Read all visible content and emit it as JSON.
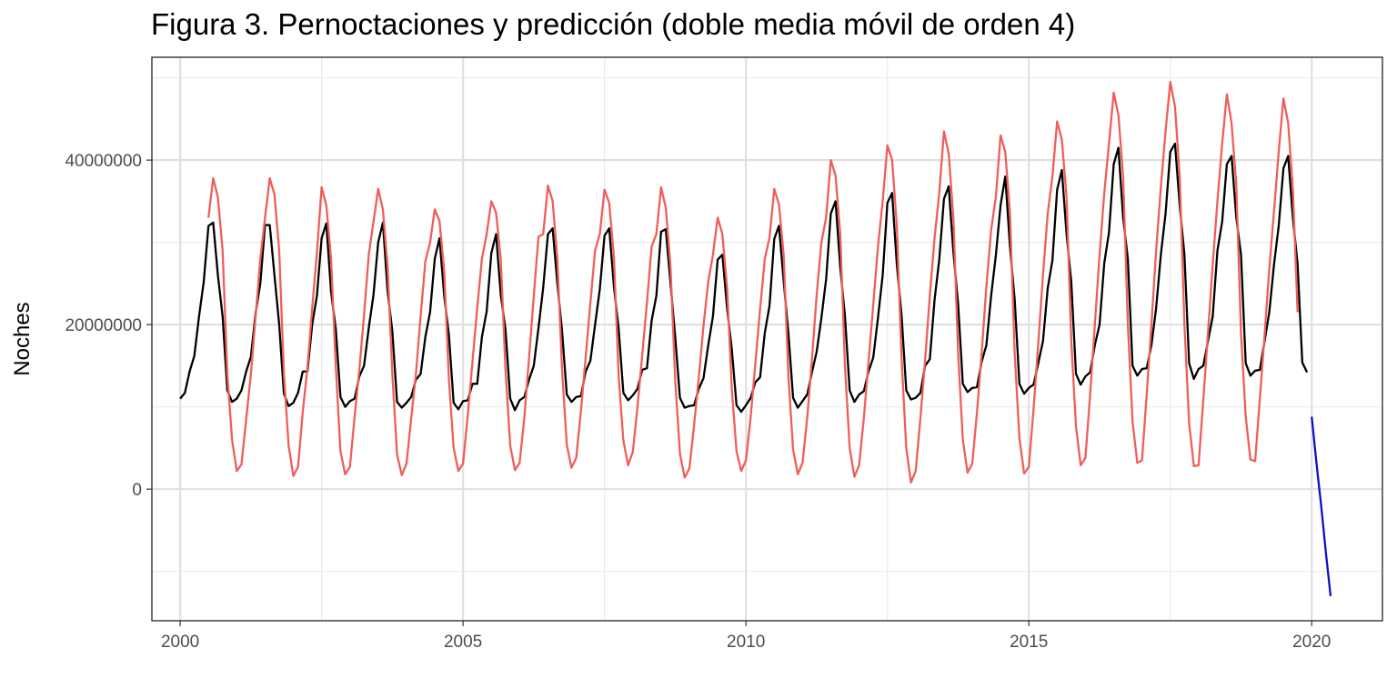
{
  "chart_data": {
    "type": "line",
    "title": "Figura 3. Pernoctaciones y predicción (doble media móvil de orden 4)",
    "xlabel": "",
    "ylabel": "Noches",
    "xlim": [
      1999.5,
      2021.25
    ],
    "ylim": [
      -16000000,
      52500000
    ],
    "x_ticks": [
      2000,
      2005,
      2010,
      2015,
      2020
    ],
    "y_ticks": [
      0,
      20000000,
      40000000
    ],
    "x_tick_labels": [
      "2000",
      "2005",
      "2010",
      "2015",
      "2020"
    ],
    "y_tick_labels": [
      "0",
      "20000000",
      "40000000"
    ],
    "grid": true,
    "x_start": 2000,
    "frequency": "monthly",
    "series": [
      {
        "color": "#000000",
        "start": 2000.0,
        "values": [
          11000000,
          11700000,
          14300000,
          16200000,
          21000000,
          25200000,
          32000000,
          32400000,
          26000000,
          21000000,
          12000000,
          10600000,
          11000000,
          12000000,
          14300000,
          16100000,
          21400000,
          25000000,
          32100000,
          32100000,
          26000000,
          20000000,
          11600000,
          10100000,
          10500000,
          11700000,
          14300000,
          14300000,
          20000000,
          23500000,
          30500000,
          32300000,
          24000000,
          19500000,
          11200000,
          10000000,
          10700000,
          11000000,
          13700000,
          15000000,
          19600000,
          23600000,
          30000000,
          32400000,
          24000000,
          19200000,
          10600000,
          9900000,
          10500000,
          11200000,
          13300000,
          14000000,
          18500000,
          21500000,
          28000000,
          30500000,
          23500000,
          18700000,
          10500000,
          9700000,
          10700000,
          10800000,
          12800000,
          12800000,
          18500000,
          21600000,
          28700000,
          31000000,
          23600000,
          19400000,
          11000000,
          9600000,
          10800000,
          11200000,
          13300000,
          15000000,
          19600000,
          24500000,
          31000000,
          31700000,
          25000000,
          19200000,
          11500000,
          10600000,
          11200000,
          11300000,
          14300000,
          15600000,
          20000000,
          24300000,
          30800000,
          31700000,
          24600000,
          19500000,
          11700000,
          10800000,
          11400000,
          12200000,
          14500000,
          14700000,
          20500000,
          23500000,
          31300000,
          31600000,
          25000000,
          18500000,
          11100000,
          9900000,
          10100000,
          10200000,
          12200000,
          13500000,
          17500000,
          21000000,
          27900000,
          28500000,
          22000000,
          17000000,
          10200000,
          9400000,
          10200000,
          11100000,
          13000000,
          13600000,
          19000000,
          22300000,
          30400000,
          32000000,
          25300000,
          19000000,
          11100000,
          9900000,
          10700000,
          11500000,
          14200000,
          16700000,
          20800000,
          25500000,
          33500000,
          35000000,
          27000000,
          21000000,
          12000000,
          10600000,
          11500000,
          11900000,
          14300000,
          16000000,
          20800000,
          26000000,
          34800000,
          36000000,
          27300000,
          21200000,
          12000000,
          10900000,
          11100000,
          11700000,
          15000000,
          15800000,
          23000000,
          27900000,
          35300000,
          36800000,
          28800000,
          22500000,
          12800000,
          11800000,
          12300000,
          12400000,
          15500000,
          17500000,
          23500000,
          28400000,
          34500000,
          38000000,
          29500000,
          23000000,
          12800000,
          11600000,
          12300000,
          12700000,
          15300000,
          18000000,
          24400000,
          27800000,
          36400000,
          38800000,
          31000000,
          25200000,
          14000000,
          12700000,
          13700000,
          14200000,
          17500000,
          20000000,
          27500000,
          31200000,
          39500000,
          41500000,
          33000000,
          28000000,
          15000000,
          13800000,
          14600000,
          14700000,
          17500000,
          22000000,
          28500000,
          33500000,
          41000000,
          42000000,
          34500000,
          28500000,
          15300000,
          13400000,
          14600000,
          15000000,
          18000000,
          21000000,
          29000000,
          32500000,
          39500000,
          40500000,
          33000000,
          28500000,
          15300000,
          13800000,
          14400000,
          14500000,
          18000000,
          21500000,
          27300000,
          32000000,
          39000000,
          40500000,
          33000000,
          27400000,
          15400000,
          14200000
        ]
      },
      {
        "color": "#ef5e5a",
        "start": 2000.5,
        "values": [
          33000000,
          37800000,
          35500000,
          29000000,
          14000000,
          6000000,
          2200000,
          3000000,
          8500000,
          14000000,
          21000000,
          28000000,
          33000000,
          37800000,
          35800000,
          29000000,
          14000000,
          5300000,
          1600000,
          2700000,
          9400000,
          14800000,
          22000000,
          28700000,
          36700000,
          34500000,
          28000000,
          15000000,
          4600000,
          1800000,
          2700000,
          8800000,
          14500000,
          21200000,
          28500000,
          32500000,
          36500000,
          34000000,
          27000000,
          14000000,
          4200000,
          1700000,
          3100000,
          8600000,
          14000000,
          21000000,
          27700000,
          30000000,
          34000000,
          32600000,
          26500000,
          13300000,
          5000000,
          2200000,
          3100000,
          9000000,
          15500000,
          22000000,
          28000000,
          31000000,
          35000000,
          33600000,
          28000000,
          14500000,
          5300000,
          2300000,
          3200000,
          8700000,
          16000000,
          23500000,
          30700000,
          31000000,
          36900000,
          35000000,
          28000000,
          14500000,
          5400000,
          2600000,
          3800000,
          9500000,
          16000000,
          22600000,
          29000000,
          31000000,
          36400000,
          34800000,
          28200000,
          13700000,
          5900000,
          2900000,
          4500000,
          10000000,
          16300000,
          22700000,
          29500000,
          31000000,
          36700000,
          34200000,
          27000000,
          13200000,
          4300000,
          1400000,
          2500000,
          7800000,
          13600000,
          19900000,
          25200000,
          28500000,
          33000000,
          31000000,
          24500000,
          12200000,
          4600000,
          2200000,
          3500000,
          8800000,
          15300000,
          21900000,
          28000000,
          30600000,
          36500000,
          34600000,
          28500000,
          13800000,
          4800000,
          1800000,
          3200000,
          8700000,
          15800000,
          23600000,
          30000000,
          33000000,
          40000000,
          38100000,
          31000000,
          15000000,
          5000000,
          1500000,
          2900000,
          8600000,
          15500000,
          22400000,
          29500000,
          35000000,
          41800000,
          40000000,
          32000000,
          16000000,
          5000000,
          800000,
          2200000,
          8600000,
          15700000,
          23500000,
          30500000,
          36000000,
          43500000,
          40800000,
          33000000,
          16500000,
          6000000,
          2000000,
          3100000,
          9300000,
          16600000,
          24700000,
          31500000,
          35500000,
          43000000,
          41000000,
          33500000,
          16500000,
          6200000,
          1900000,
          2700000,
          9700000,
          17700000,
          26000000,
          33500000,
          38000000,
          44700000,
          42500000,
          35500000,
          18000000,
          7600000,
          2900000,
          3800000,
          11500000,
          20000000,
          28500000,
          36000000,
          42000000,
          48200000,
          45500000,
          38000000,
          20000000,
          8200000,
          3200000,
          3500000,
          11500000,
          20000000,
          29000000,
          36700000,
          43500000,
          49500000,
          46500000,
          38000000,
          20000000,
          8000000,
          2800000,
          2900000,
          10800000,
          19000000,
          27300000,
          35000000,
          42000000,
          48000000,
          44500000,
          37000000,
          19000000,
          8800000,
          3600000,
          3400000,
          11000000,
          18700000,
          26800000,
          33800000,
          41000000,
          47500000,
          44500000,
          36500000,
          21500000
        ]
      },
      {
        "color": "#1010c8",
        "start": 2020.0,
        "step_years": 0.0833333,
        "values": [
          8800000,
          3200000,
          -2000000,
          -7700000,
          -13000000
        ]
      }
    ]
  }
}
